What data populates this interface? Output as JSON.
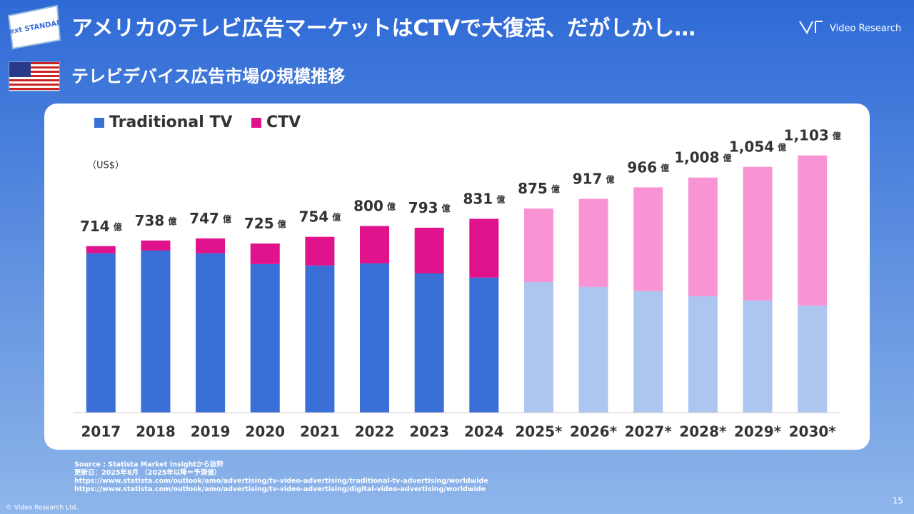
{
  "header": {
    "title": "アメリカのテレビ広告マーケットはCTVで大復活、だがしかし…",
    "subtitle": "テレビデバイス広告市場の規模推移",
    "logo": "Video Research",
    "badge": "Next STANDARD"
  },
  "chart_data": {
    "type": "bar",
    "stacked": true,
    "unit_label": "（US$）",
    "categories": [
      "2017",
      "2018",
      "2019",
      "2020",
      "2021",
      "2022",
      "2023",
      "2024",
      "2025*",
      "2026*",
      "2027*",
      "2028*",
      "2029*",
      "2030*"
    ],
    "series": [
      {
        "name": "Traditional TV",
        "color": "#3a6fd8",
        "colors": [
          "#3a6fd8",
          "#3a6fd8",
          "#3a6fd8",
          "#3a6fd8",
          "#3a6fd8",
          "#3a6fd8",
          "#3a6fd8",
          "#3a6fd8",
          "#adc6f0",
          "#adc6f0",
          "#adc6f0",
          "#adc6f0",
          "#adc6f0",
          "#adc6f0"
        ],
        "values": [
          683,
          695,
          683,
          637,
          631,
          640,
          597,
          579,
          560,
          539,
          521,
          499,
          481,
          459
        ]
      },
      {
        "name": "CTV",
        "color": "#e0138c",
        "colors": [
          "#e0138c",
          "#e0138c",
          "#e0138c",
          "#e0138c",
          "#e0138c",
          "#e0138c",
          "#e0138c",
          "#e0138c",
          "#f994d4",
          "#f994d4",
          "#f994d4",
          "#f994d4",
          "#f994d4",
          "#f994d4"
        ],
        "values": [
          31,
          43,
          64,
          88,
          123,
          160,
          196,
          252,
          315,
          378,
          445,
          509,
          573,
          644
        ]
      }
    ],
    "totals": [
      714,
      738,
      747,
      725,
      754,
      800,
      793,
      831,
      875,
      917,
      966,
      1008,
      1054,
      1103
    ],
    "total_labels": [
      "714",
      "738",
      "747",
      "725",
      "754",
      "800",
      "793",
      "831",
      "875",
      "917",
      "966",
      "1,008",
      "1,054",
      "1,103"
    ],
    "total_unit": "億",
    "ylim": [
      0,
      1200
    ]
  },
  "footer": {
    "source": [
      "Source : Statista Market Insightから抜粋",
      "更新日：2025年8月 （2025年以降＝予測値）",
      "https://www.statista.com/outlook/amo/advertising/tv-video-advertising/traditional-tv-advertising/worldwide",
      "https://www.statista.com/outlook/amo/advertising/tv-video-advertising/digital-video-advertising/worldwide"
    ],
    "copyright": "© Video Research Ltd.",
    "page": 15
  }
}
